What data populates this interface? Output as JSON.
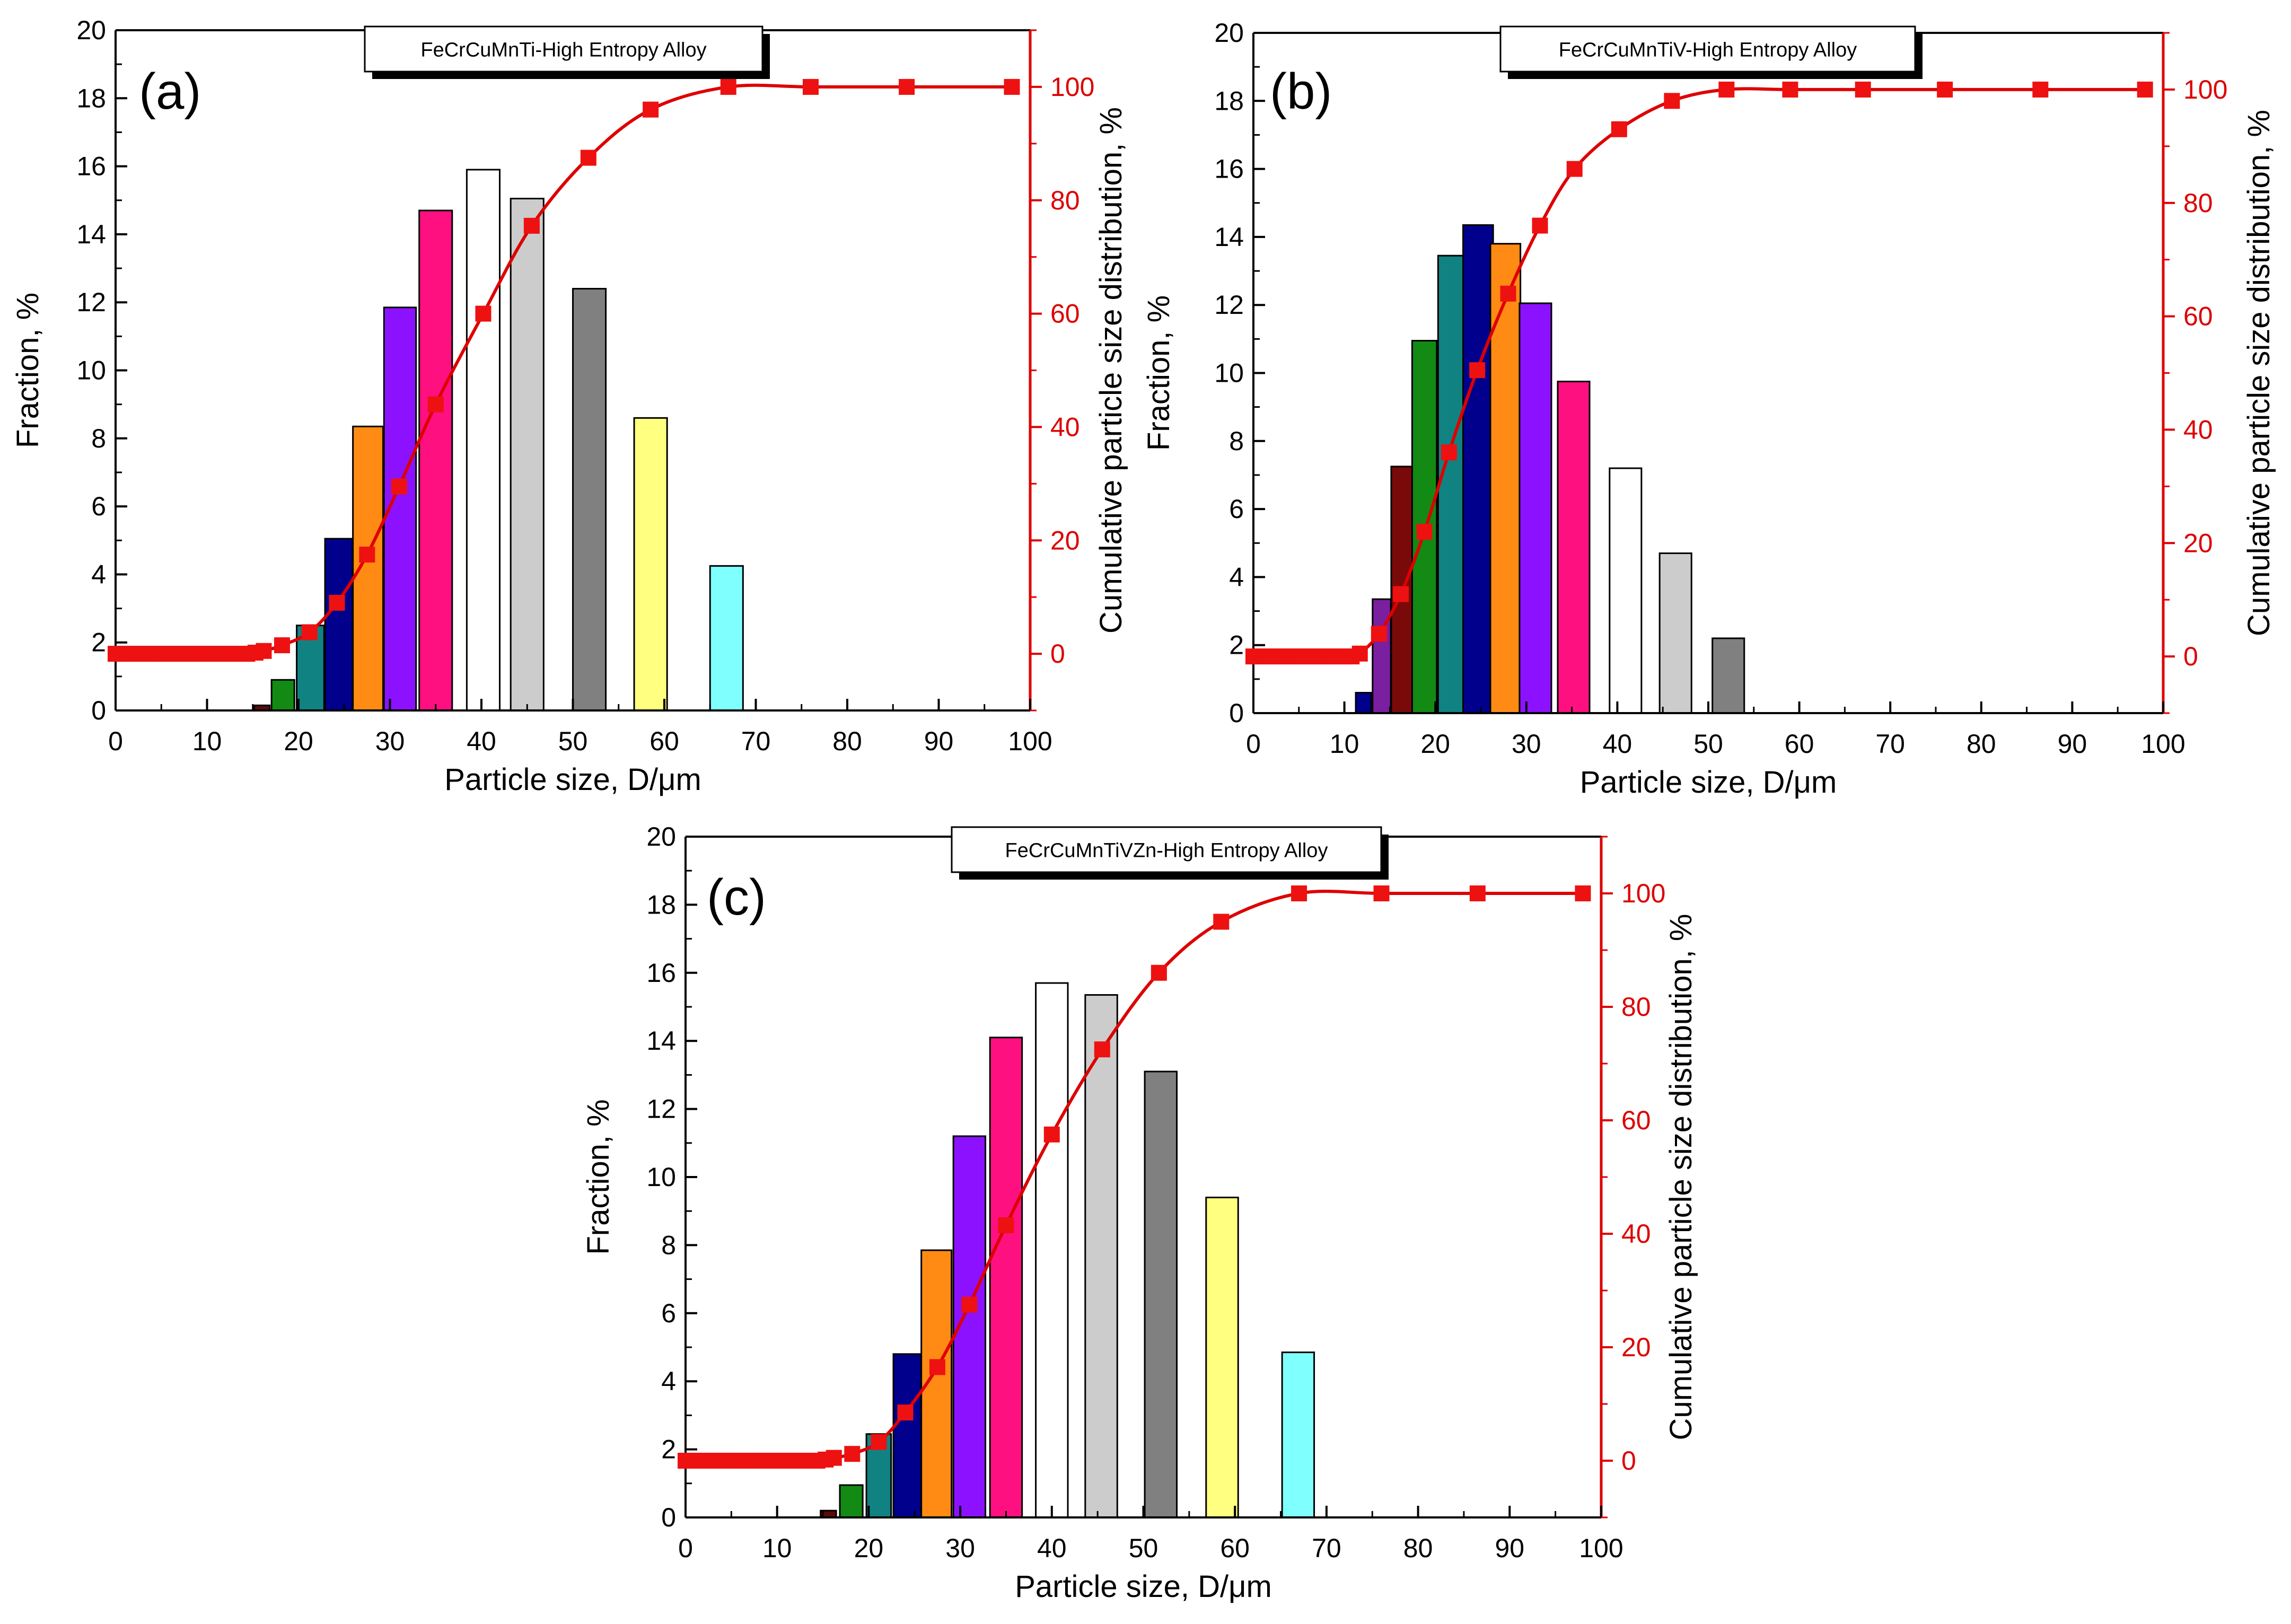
{
  "figure": {
    "charts": [
      {
        "panel_letter": "(a)",
        "legend_box_title": "FeCrCuMnTi-High Entropy Alloy"
      },
      {
        "panel_letter": "(b)",
        "legend_box_title": "FeCrCuMnTiV-High Entropy Alloy"
      },
      {
        "panel_letter": "(c)",
        "legend_box_title": "FeCrCuMnTiVZn-High Entropy Alloy"
      }
    ]
  },
  "chart_data": [
    {
      "type": "bar",
      "title": "FeCrCuMnTi-High Entropy Alloy",
      "panel": "(a)",
      "xlabel": "Particle size, D/μm",
      "ylabel": "Fraction, %",
      "y2label": "Cumulative particle size distribution, %",
      "xlim": [
        0,
        100
      ],
      "ylim": [
        0,
        20
      ],
      "y2lim": [
        -10,
        110
      ],
      "xticks": [
        "0",
        "10",
        "20",
        "30",
        "40",
        "50",
        "60",
        "70",
        "80",
        "90",
        "100"
      ],
      "yticks": [
        "0",
        "2",
        "4",
        "6",
        "8",
        "10",
        "12",
        "14",
        "16",
        "18",
        "20"
      ],
      "y2ticks": [
        "0",
        "20",
        "40",
        "60",
        "80",
        "100"
      ],
      "bars": {
        "x": [
          16.0,
          18.3,
          21.3,
          24.4,
          27.6,
          31.1,
          35.0,
          40.2,
          45.0,
          51.8,
          58.5,
          66.8
        ],
        "width": [
          1.7,
          2.5,
          3.0,
          3.0,
          3.3,
          3.5,
          3.6,
          3.6,
          3.6,
          3.6,
          3.6,
          3.6
        ],
        "values": [
          0.15,
          0.9,
          2.5,
          5.05,
          8.35,
          11.85,
          14.7,
          15.9,
          15.05,
          12.4,
          8.6,
          4.25
        ],
        "colors": [
          "#5c0a0a",
          "#138a13",
          "#118282",
          "#00008c",
          "#ff8b14",
          "#8c12ff",
          "#ff1080",
          "#ffffff",
          "#cccccc",
          "#808080",
          "#ffff80",
          "#80ffff"
        ]
      },
      "cumulative": {
        "x": [
          0,
          0.9,
          1.8,
          2.7,
          3.6,
          4.5,
          5.4,
          6.3,
          7.2,
          8.1,
          9,
          9.9,
          10.8,
          11.7,
          12.6,
          13.5,
          14.4,
          15.3,
          16.2,
          18.2,
          21.2,
          24.2,
          27.5,
          31,
          35,
          40.2,
          45.5,
          51.7,
          58.5,
          67,
          76,
          86.5,
          98
        ],
        "values": [
          0,
          0,
          0,
          0,
          0,
          0,
          0,
          0,
          0,
          0,
          0,
          0,
          0,
          0,
          0,
          0,
          0,
          0.2,
          0.5,
          1.5,
          3.8,
          9,
          17.5,
          29.5,
          44,
          60,
          75.5,
          87.5,
          96,
          100,
          100,
          100,
          100
        ]
      },
      "line_color": "#dd0000"
    },
    {
      "type": "bar",
      "title": "FeCrCuMnTiV-High Entropy Alloy",
      "panel": "(b)",
      "xlabel": "Particle size, D/μm",
      "ylabel": "Fraction, %",
      "y2label": "Cumulative particle size distribution, %",
      "xlim": [
        0,
        100
      ],
      "ylim": [
        0,
        20
      ],
      "y2lim": [
        -10,
        110
      ],
      "xticks": [
        "0",
        "10",
        "20",
        "30",
        "40",
        "50",
        "60",
        "70",
        "80",
        "90",
        "100"
      ],
      "yticks": [
        "0",
        "2",
        "4",
        "6",
        "8",
        "10",
        "12",
        "14",
        "16",
        "18",
        "20"
      ],
      "y2ticks": [
        "0",
        "20",
        "40",
        "60",
        "80",
        "100"
      ],
      "bars": {
        "x": [
          12.1,
          14.1,
          16.4,
          18.8,
          21.8,
          24.7,
          27.7,
          31.0,
          35.2,
          40.9,
          46.4,
          52.2
        ],
        "width": [
          1.7,
          2.0,
          2.5,
          2.7,
          3.0,
          3.3,
          3.3,
          3.5,
          3.5,
          3.5,
          3.5,
          3.5
        ],
        "values": [
          0.6,
          3.35,
          7.25,
          10.95,
          13.45,
          14.35,
          13.8,
          12.05,
          9.75,
          7.2,
          4.7,
          2.2
        ],
        "colors": [
          "#00008c",
          "#7a1fa0",
          "#7a0a0a",
          "#138a13",
          "#118282",
          "#00008c",
          "#ff8b14",
          "#8c12ff",
          "#ff1080",
          "#ffffff",
          "#cccccc",
          "#808080"
        ]
      },
      "cumulative": {
        "x": [
          0,
          0.9,
          1.8,
          2.7,
          3.6,
          4.5,
          5.4,
          6.3,
          7.2,
          8.1,
          9,
          9.9,
          10.8,
          11.7,
          13.8,
          16.2,
          18.8,
          21.5,
          24.6,
          28,
          31.5,
          35.3,
          40.2,
          46,
          52,
          59,
          67,
          76,
          86.5,
          98
        ],
        "values": [
          0,
          0,
          0,
          0,
          0,
          0,
          0,
          0,
          0,
          0,
          0,
          0,
          0,
          0.5,
          4,
          11,
          22,
          36,
          50.5,
          64,
          76,
          86,
          93,
          98,
          100,
          100,
          100,
          100,
          100,
          100
        ]
      },
      "line_color": "#dd0000"
    },
    {
      "type": "bar",
      "title": "FeCrCuMnTiVZn-High Entropy Alloy",
      "panel": "(c)",
      "xlabel": "Particle size, D/μm",
      "ylabel": "Fraction, %",
      "y2label": "Cumulative particle size distribution, %",
      "xlim": [
        0,
        100
      ],
      "ylim": [
        0,
        20
      ],
      "y2lim": [
        -10,
        110
      ],
      "xticks": [
        "0",
        "10",
        "20",
        "30",
        "40",
        "50",
        "60",
        "70",
        "80",
        "90",
        "100"
      ],
      "yticks": [
        "0",
        "2",
        "4",
        "6",
        "8",
        "10",
        "12",
        "14",
        "16",
        "18",
        "20"
      ],
      "y2ticks": [
        "0",
        "20",
        "40",
        "60",
        "80",
        "100"
      ],
      "bars": {
        "x": [
          15.6,
          18.1,
          21.1,
          24.2,
          27.4,
          31.0,
          35.0,
          40.0,
          45.4,
          51.9,
          58.6,
          66.9
        ],
        "width": [
          1.7,
          2.5,
          2.7,
          3.0,
          3.3,
          3.5,
          3.5,
          3.5,
          3.5,
          3.5,
          3.5,
          3.5
        ],
        "values": [
          0.2,
          0.95,
          2.45,
          4.8,
          7.85,
          11.2,
          14.1,
          15.7,
          15.35,
          13.1,
          9.4,
          4.85
        ],
        "colors": [
          "#5c0a0a",
          "#138a13",
          "#118282",
          "#00008c",
          "#ff8b14",
          "#8c12ff",
          "#ff1080",
          "#ffffff",
          "#cccccc",
          "#808080",
          "#ffff80",
          "#80ffff"
        ]
      },
      "cumulative": {
        "x": [
          0,
          0.9,
          1.8,
          2.7,
          3.6,
          4.5,
          5.4,
          6.3,
          7.2,
          8.1,
          9,
          9.9,
          10.8,
          11.7,
          12.6,
          13.5,
          14.4,
          15.3,
          16.2,
          18.2,
          21.1,
          24,
          27.5,
          31,
          35,
          40,
          45.5,
          51.7,
          58.5,
          67,
          76,
          86.5,
          98
        ],
        "values": [
          0,
          0,
          0,
          0,
          0,
          0,
          0,
          0,
          0,
          0,
          0,
          0,
          0,
          0,
          0,
          0,
          0,
          0.2,
          0.5,
          1.2,
          3.3,
          8.5,
          16.5,
          27.5,
          41.5,
          57.5,
          72.5,
          86,
          95,
          100,
          100,
          100,
          100
        ]
      },
      "line_color": "#dd0000"
    }
  ]
}
